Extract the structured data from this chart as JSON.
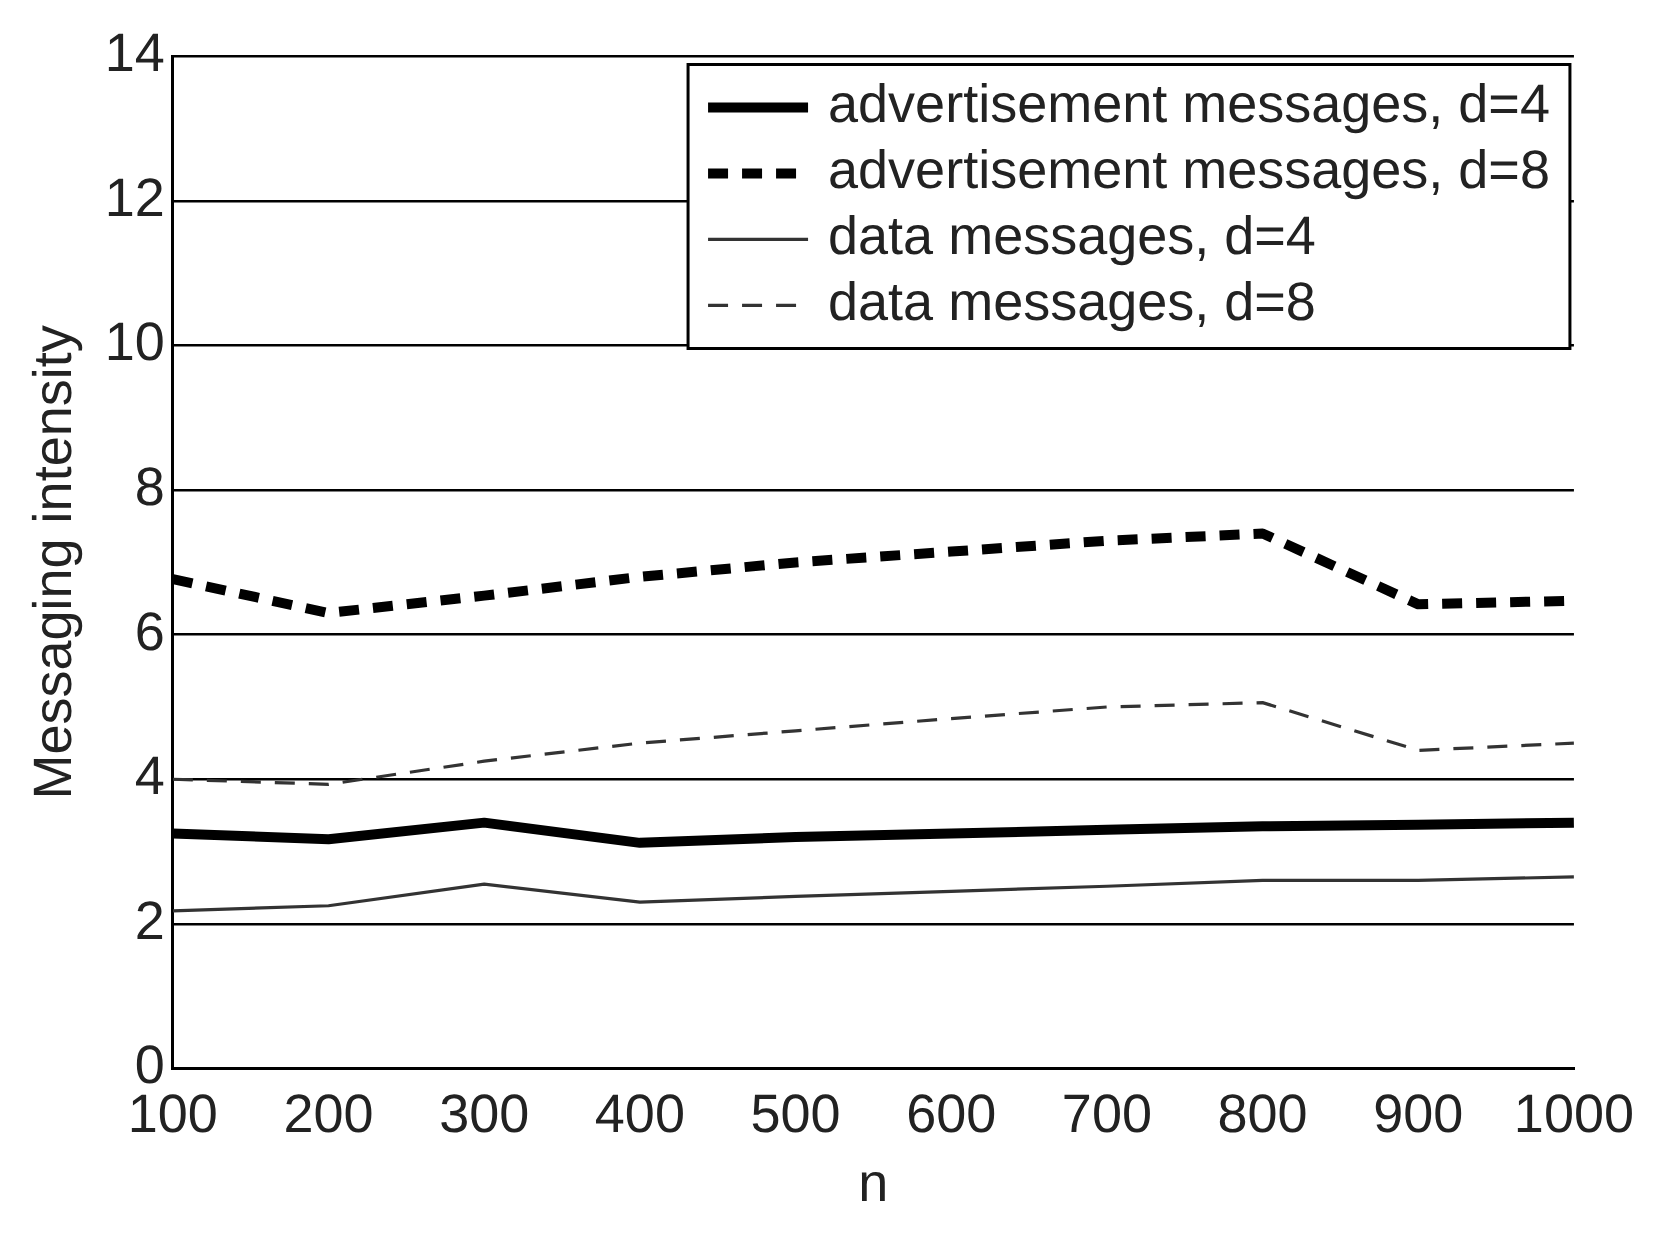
{
  "chart_data": {
    "type": "line",
    "xlabel": "n",
    "ylabel": "Messaging intensity",
    "x": [
      100,
      200,
      300,
      400,
      500,
      600,
      700,
      800,
      900,
      1000
    ],
    "xlim": [
      100,
      1000
    ],
    "xticks": [
      100,
      200,
      300,
      400,
      500,
      600,
      700,
      800,
      900,
      1000
    ],
    "ylim": [
      0,
      14
    ],
    "yticks": [
      0,
      2,
      4,
      6,
      8,
      10,
      12,
      14
    ],
    "grid": "y",
    "legend": "top right",
    "marker": "none",
    "series": [
      {
        "name": "advertisement messages, d=4",
        "color": "#000000",
        "line_style": "solid",
        "values": [
          3.25,
          3.17,
          3.4,
          3.12,
          3.2,
          3.25,
          3.3,
          3.35,
          3.37,
          3.4
        ]
      },
      {
        "name": "advertisement messages, d=8",
        "color": "#000000",
        "line_style": "dashed",
        "values": [
          6.77,
          6.3,
          6.54,
          6.8,
          7.0,
          7.15,
          7.3,
          7.4,
          6.42,
          6.47
        ]
      },
      {
        "name": "data messages, d=4",
        "color": "#333333",
        "line_style": "solid",
        "values": [
          2.18,
          2.25,
          2.55,
          2.3,
          2.38,
          2.45,
          2.52,
          2.6,
          2.6,
          2.65
        ]
      },
      {
        "name": "data messages, d=8",
        "color": "#333333",
        "line_style": "dashed",
        "values": [
          4.0,
          3.93,
          4.25,
          4.5,
          4.67,
          4.84,
          5.0,
          5.06,
          4.4,
          4.5
        ]
      }
    ]
  }
}
